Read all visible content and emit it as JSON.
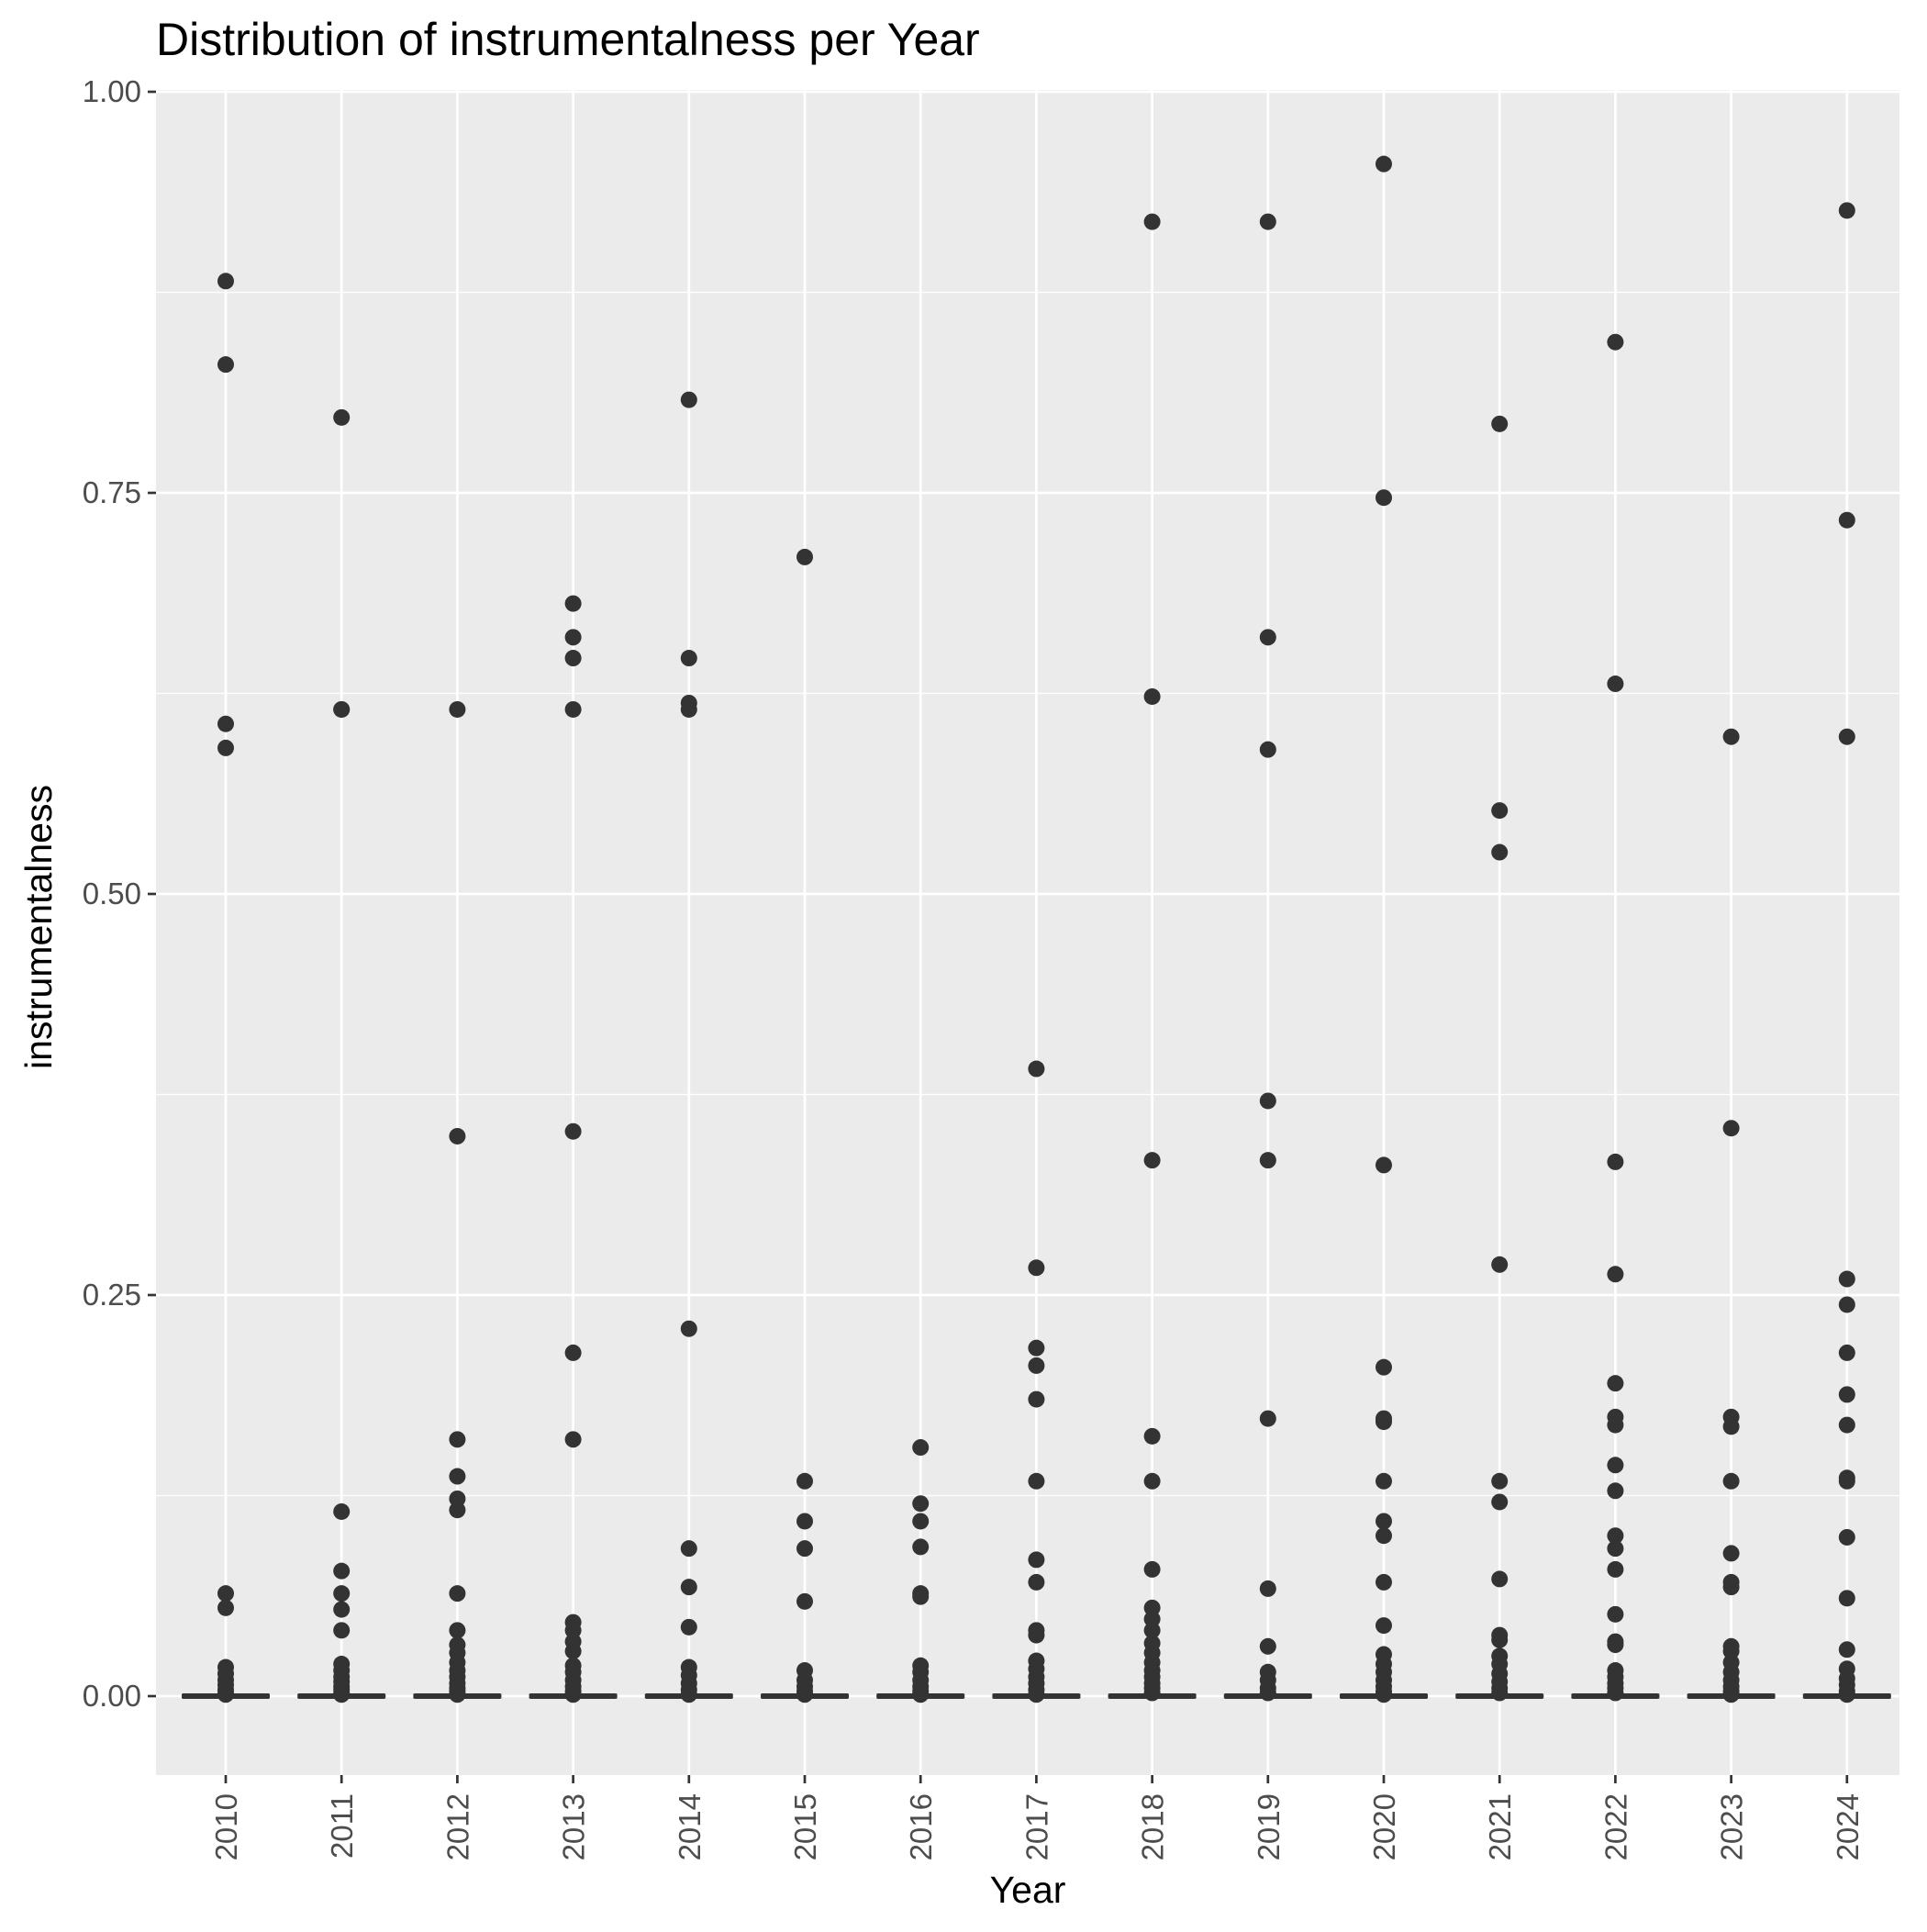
{
  "chart_data": {
    "type": "boxplot",
    "title": "Distribution of instrumentalness per Year",
    "xlabel": "Year",
    "ylabel": "instrumentalness",
    "ylim": [
      -0.047,
      1.0
    ],
    "y_ticks": [
      0.0,
      0.25,
      0.5,
      0.75,
      1.0
    ],
    "y_tick_labels": [
      "0.00",
      "0.25",
      "0.50",
      "0.75",
      "1.00"
    ],
    "grid": true,
    "panel_background": "#EBEBEB",
    "grid_color": "#FFFFFF",
    "point_color": "#333333",
    "categories": [
      "2010",
      "2011",
      "2012",
      "2013",
      "2014",
      "2015",
      "2016",
      "2017",
      "2018",
      "2019",
      "2020",
      "2021",
      "2022",
      "2023",
      "2024"
    ],
    "boxes": [
      {
        "year": "2010",
        "q1": 0,
        "median": 0,
        "q3": 0,
        "whisker_low": 0,
        "whisker_high": 0,
        "outliers": [
          0.882,
          0.83,
          0.606,
          0.591,
          0.064,
          0.055,
          0.018,
          0.014,
          0.01,
          0.007,
          0.004,
          0.002,
          0.001
        ]
      },
      {
        "year": "2011",
        "q1": 0,
        "median": 0,
        "q3": 0,
        "whisker_low": 0,
        "whisker_high": 0,
        "outliers": [
          0.797,
          0.615,
          0.615,
          0.115,
          0.078,
          0.064,
          0.054,
          0.041,
          0.02,
          0.016,
          0.012,
          0.009,
          0.006,
          0.004,
          0.002,
          0.001
        ]
      },
      {
        "year": "2012",
        "q1": 0,
        "median": 0,
        "q3": 0,
        "whisker_low": 0,
        "whisker_high": 0,
        "outliers": [
          0.615,
          0.349,
          0.16,
          0.137,
          0.123,
          0.116,
          0.064,
          0.041,
          0.032,
          0.027,
          0.021,
          0.016,
          0.012,
          0.008,
          0.005,
          0.003,
          0.001
        ]
      },
      {
        "year": "2013",
        "q1": 0,
        "median": 0,
        "q3": 0,
        "whisker_low": 0,
        "whisker_high": 0,
        "outliers": [
          0.681,
          0.66,
          0.647,
          0.615,
          0.352,
          0.214,
          0.16,
          0.046,
          0.041,
          0.034,
          0.028,
          0.019,
          0.015,
          0.01,
          0.006,
          0.003,
          0.001
        ]
      },
      {
        "year": "2014",
        "q1": 0,
        "median": 0,
        "q3": 0,
        "whisker_low": 0,
        "whisker_high": 0,
        "outliers": [
          0.808,
          0.647,
          0.619,
          0.615,
          0.229,
          0.092,
          0.068,
          0.043,
          0.018,
          0.013,
          0.008,
          0.004,
          0.001
        ]
      },
      {
        "year": "2015",
        "q1": 0,
        "median": 0,
        "q3": 0,
        "whisker_low": 0,
        "whisker_high": 0,
        "outliers": [
          0.71,
          0.134,
          0.109,
          0.092,
          0.059,
          0.016,
          0.01,
          0.006,
          0.003,
          0.001
        ]
      },
      {
        "year": "2016",
        "q1": 0,
        "median": 0,
        "q3": 0,
        "whisker_low": 0,
        "whisker_high": 0,
        "outliers": [
          0.155,
          0.12,
          0.109,
          0.093,
          0.064,
          0.062,
          0.019,
          0.015,
          0.01,
          0.006,
          0.003,
          0.001
        ]
      },
      {
        "year": "2017",
        "q1": 0,
        "median": 0,
        "q3": 0,
        "whisker_low": 0,
        "whisker_high": 0,
        "outliers": [
          0.391,
          0.267,
          0.217,
          0.206,
          0.185,
          0.134,
          0.085,
          0.071,
          0.041,
          0.038,
          0.022,
          0.017,
          0.012,
          0.008,
          0.004,
          0.001
        ]
      },
      {
        "year": "2018",
        "q1": 0,
        "median": 0,
        "q3": 0,
        "whisker_low": 0,
        "whisker_high": 0,
        "outliers": [
          0.919,
          0.623,
          0.334,
          0.162,
          0.134,
          0.079,
          0.055,
          0.048,
          0.041,
          0.033,
          0.027,
          0.021,
          0.016,
          0.012,
          0.008,
          0.005,
          0.002
        ]
      },
      {
        "year": "2019",
        "q1": 0,
        "median": 0,
        "q3": 0,
        "whisker_low": 0,
        "whisker_high": 0,
        "outliers": [
          0.919,
          0.66,
          0.59,
          0.371,
          0.334,
          0.173,
          0.067,
          0.031,
          0.015,
          0.01,
          0.005,
          0.002
        ]
      },
      {
        "year": "2020",
        "q1": 0,
        "median": 0,
        "q3": 0,
        "whisker_low": 0,
        "whisker_high": 0,
        "outliers": [
          0.955,
          0.747,
          0.331,
          0.205,
          0.173,
          0.171,
          0.134,
          0.109,
          0.1,
          0.071,
          0.044,
          0.026,
          0.02,
          0.015,
          0.01,
          0.006,
          0.003,
          0.001
        ]
      },
      {
        "year": "2021",
        "q1": 0,
        "median": 0,
        "q3": 0,
        "whisker_low": 0,
        "whisker_high": 0,
        "outliers": [
          0.793,
          0.552,
          0.526,
          0.269,
          0.134,
          0.121,
          0.073,
          0.038,
          0.035,
          0.025,
          0.02,
          0.014,
          0.009,
          0.005,
          0.002
        ]
      },
      {
        "year": "2022",
        "q1": 0,
        "median": 0,
        "q3": 0,
        "whisker_low": 0,
        "whisker_high": 0,
        "outliers": [
          0.844,
          0.631,
          0.333,
          0.263,
          0.195,
          0.174,
          0.169,
          0.144,
          0.128,
          0.1,
          0.092,
          0.079,
          0.051,
          0.034,
          0.032,
          0.016,
          0.012,
          0.008,
          0.005,
          0.002
        ]
      },
      {
        "year": "2023",
        "q1": 0,
        "median": 0,
        "q3": 0,
        "whisker_low": 0,
        "whisker_high": 0,
        "outliers": [
          0.598,
          0.354,
          0.174,
          0.168,
          0.134,
          0.089,
          0.071,
          0.068,
          0.031,
          0.028,
          0.021,
          0.015,
          0.01,
          0.006,
          0.003,
          0.001
        ]
      },
      {
        "year": "2024",
        "q1": 0,
        "median": 0,
        "q3": 0,
        "whisker_low": 0,
        "whisker_high": 0,
        "outliers": [
          0.926,
          0.733,
          0.598,
          0.26,
          0.244,
          0.214,
          0.188,
          0.169,
          0.136,
          0.134,
          0.099,
          0.061,
          0.029,
          0.017,
          0.011,
          0.007,
          0.003,
          0.001
        ]
      }
    ]
  }
}
